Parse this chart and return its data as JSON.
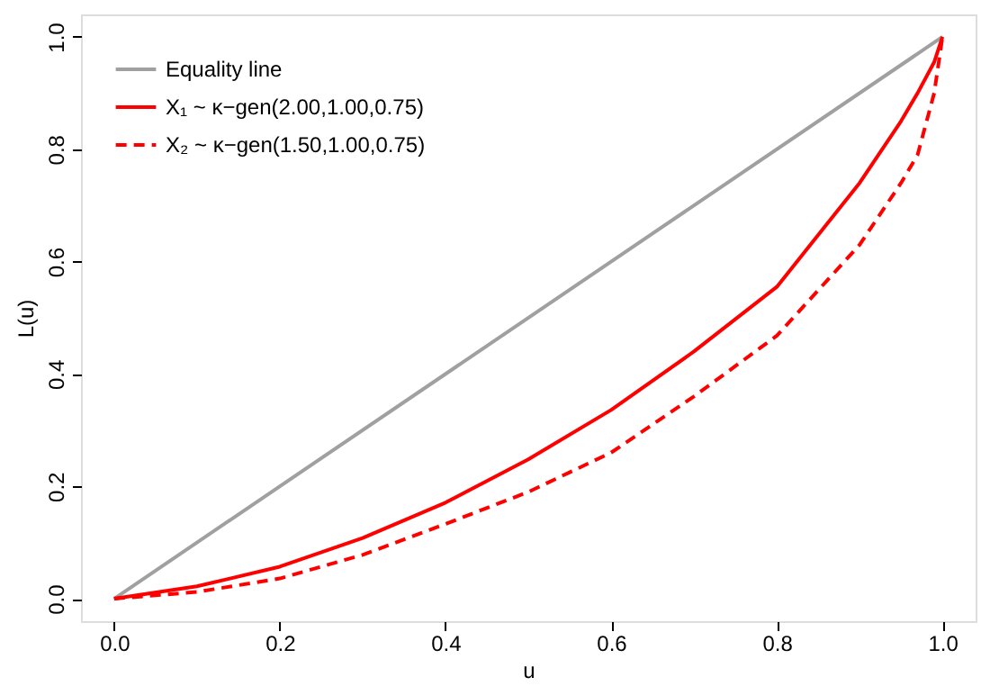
{
  "chart_data": {
    "type": "line",
    "xlabel": "u",
    "ylabel": "L(u)",
    "xlim": [
      -0.04,
      1.04
    ],
    "ylim": [
      -0.04,
      1.04
    ],
    "xticks": [
      {
        "value": 0,
        "label": "0.0"
      },
      0.2,
      0.4,
      0.6,
      0.8,
      {
        "value": 1,
        "label": "1.0"
      }
    ],
    "yticks": [
      {
        "value": 0,
        "label": "0.0"
      },
      0.2,
      0.4,
      0.6,
      0.8,
      {
        "value": 1,
        "label": "1.0"
      }
    ],
    "grid": false,
    "legend": "top left",
    "marker": "none",
    "series": [
      {
        "name": "Equality line",
        "color": "#a0a0a0",
        "line_style": "solid",
        "x": [
          0,
          1
        ],
        "values": [
          0,
          1
        ]
      },
      {
        "name": "X₁ ~ κ−gen(2.00,1.00,0.75)",
        "color": "#ff0000",
        "line_style": "solid",
        "x": [
          0,
          0.1,
          0.2,
          0.3,
          0.4,
          0.5,
          0.6,
          0.7,
          0.8,
          0.9,
          0.95,
          0.97,
          0.99,
          1
        ],
        "values": [
          0,
          0.022,
          0.057,
          0.108,
          0.171,
          0.248,
          0.336,
          0.44,
          0.555,
          0.74,
          0.85,
          0.9,
          0.955,
          1
        ]
      },
      {
        "name": "X₂ ~ κ−gen(1.50,1.00,0.75)",
        "color": "#ff0000",
        "line_style": "dashed",
        "x": [
          0,
          0.1,
          0.2,
          0.3,
          0.4,
          0.5,
          0.6,
          0.7,
          0.8,
          0.9,
          0.95,
          0.97,
          0.99,
          1
        ],
        "values": [
          0,
          0.012,
          0.036,
          0.078,
          0.133,
          0.19,
          0.26,
          0.36,
          0.468,
          0.63,
          0.74,
          0.79,
          0.9,
          1
        ]
      }
    ]
  }
}
